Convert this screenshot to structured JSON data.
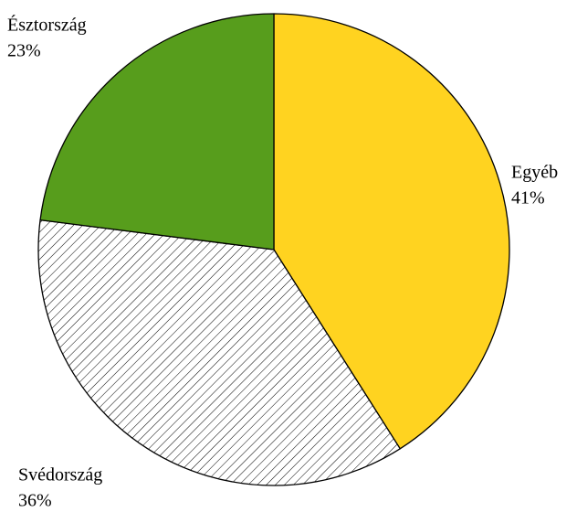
{
  "chart_data": {
    "type": "pie",
    "categories": [
      "Egyéb",
      "Svédország",
      "Észtország"
    ],
    "values": [
      41,
      36,
      23
    ],
    "value_labels": [
      "41%",
      "36%",
      "23%"
    ],
    "colors": [
      "#FFD320",
      "#FFFFFF",
      "#579D1C"
    ],
    "hatch": [
      false,
      true,
      false
    ]
  }
}
